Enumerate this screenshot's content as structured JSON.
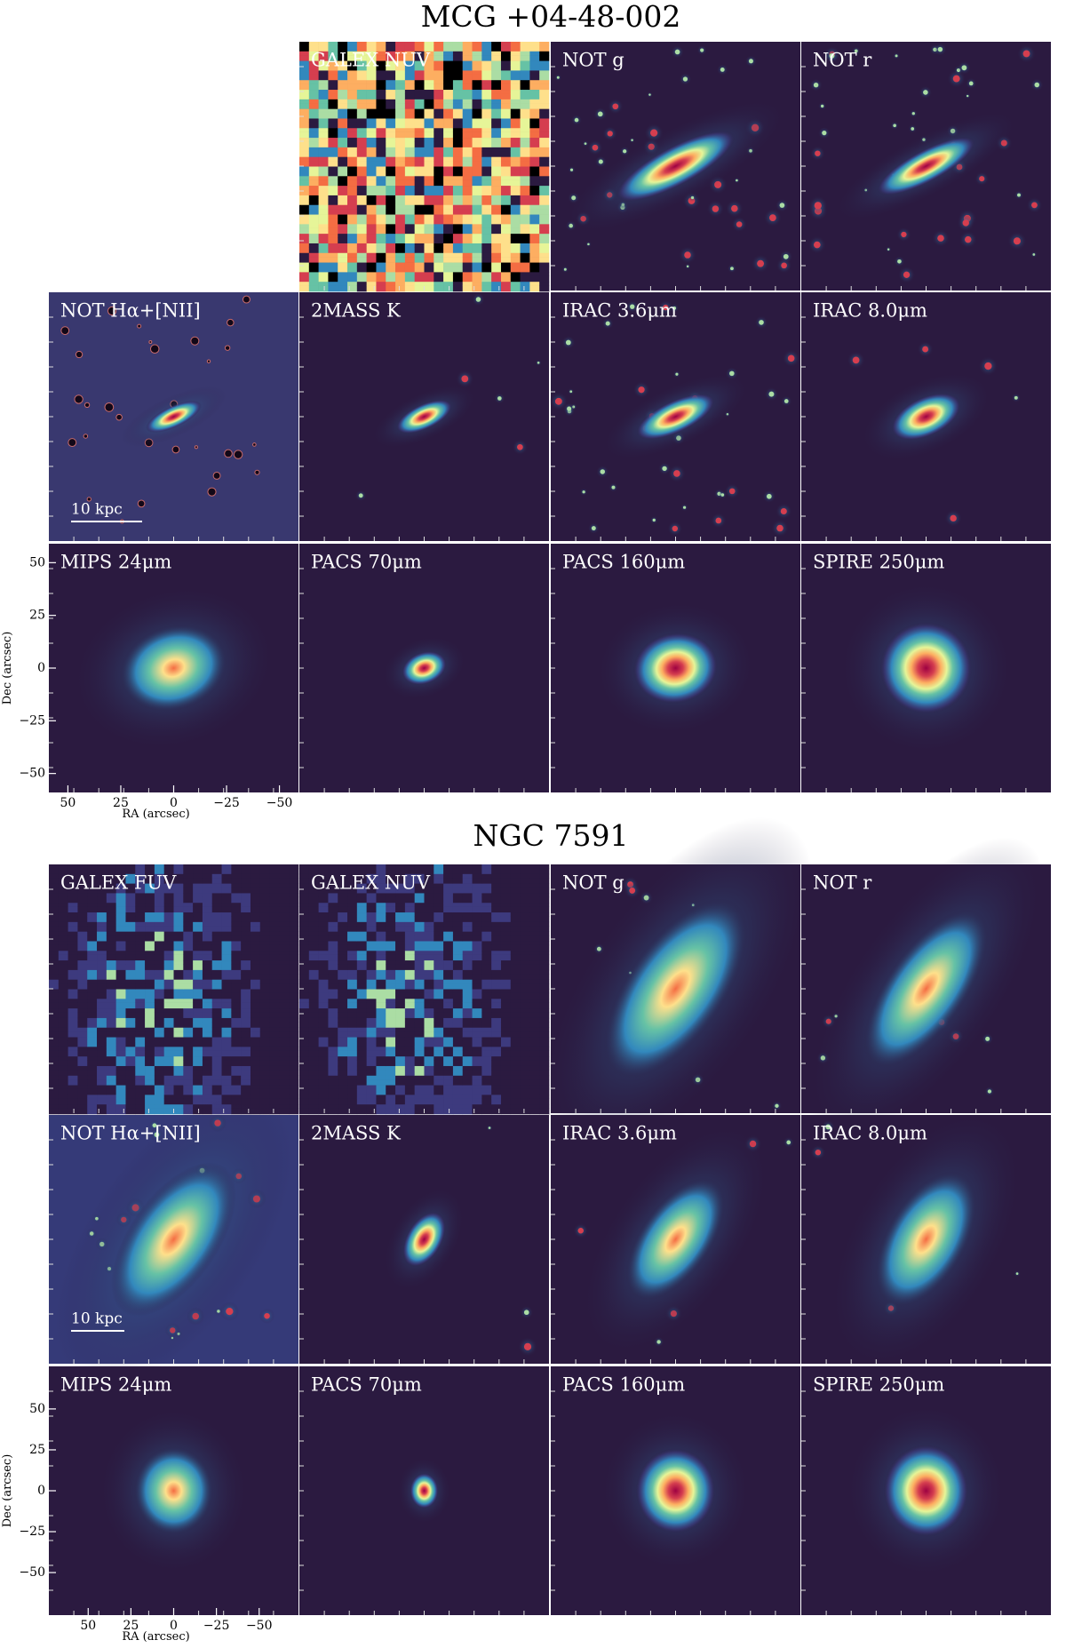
{
  "figures": [
    {
      "title": "MCG +04-48-002",
      "panels": [
        null,
        "GALEX NUV",
        "NOT g",
        "NOT r",
        "NOT Hα+[NII]",
        "2MASS K",
        "IRAC 3.6μm",
        "IRAC 8.0μm",
        "MIPS 24μm",
        "PACS 70μm",
        "PACS 160μm",
        "SPIRE 250μm"
      ],
      "scale_bar": "10 kpc",
      "y_label": "Dec (arcsec)",
      "x_label": "RA (arcsec)",
      "xlim": [
        59,
        -59
      ],
      "ylim": [
        -59,
        59
      ],
      "xticks": [
        50,
        25,
        0,
        {
          "value": -25,
          "label": "−25"
        },
        {
          "value": -50,
          "label": "−50"
        }
      ],
      "yticks": [
        50,
        25,
        0,
        {
          "value": -25,
          "label": "−25"
        },
        {
          "value": -50,
          "label": "−50"
        }
      ]
    },
    {
      "title": "NGC 7591",
      "panels": [
        "GALEX FUV",
        "GALEX NUV",
        "NOT g",
        "NOT r",
        "NOT Hα+[NII]",
        "2MASS K",
        "IRAC 3.6μm",
        "IRAC 8.0μm",
        "MIPS 24μm",
        "PACS 70μm",
        "PACS 160μm",
        "SPIRE 250μm"
      ],
      "scale_bar": "10 kpc",
      "y_label": "Dec (arcsec)",
      "x_label": "RA (arcsec)",
      "xlim": [
        73,
        -73
      ],
      "ylim": [
        -76,
        76
      ],
      "xticks": [
        50,
        25,
        0,
        {
          "value": -25,
          "label": "−25"
        },
        {
          "value": -50,
          "label": "−50"
        }
      ],
      "yticks": [
        50,
        25,
        0,
        {
          "value": -25,
          "label": "−25"
        },
        {
          "value": -50,
          "label": "−50"
        }
      ]
    }
  ]
}
